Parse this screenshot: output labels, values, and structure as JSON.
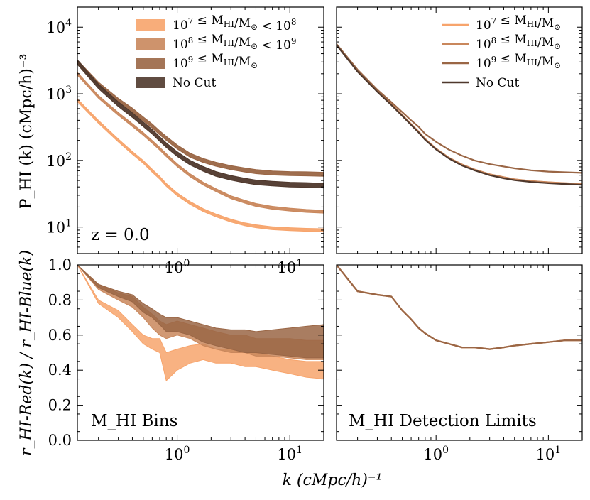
{
  "figure": {
    "xlabel": "k (cMpc/h)⁻¹",
    "ylabel_top": "P_HI (k) (cMpc/h)⁻³",
    "ylabel_bottom": "r_HI-Red(k) / r_HI-Blue(k)",
    "note_redshift": "z = 0.0",
    "note_bins": "M_HI Bins",
    "note_detection": "M_HI Detection Limits"
  },
  "colors": {
    "c1": "#f7a46c",
    "c2": "#c9875c",
    "c3": "#9a6645",
    "c4": "#4f382c"
  },
  "chart_data": [
    {
      "type": "area",
      "panel": "top-left",
      "xscale": "log",
      "yscale": "log",
      "xlim": [
        0.13,
        20
      ],
      "ylim": [
        4,
        20000
      ],
      "x_ticks": [
        "10^0",
        "10^1"
      ],
      "y_ticks": [
        "10^1",
        "10^2",
        "10^3",
        "10^4"
      ],
      "annotation": "z = 0.0",
      "legend": "top-right",
      "x": [
        0.13,
        0.2,
        0.3,
        0.4,
        0.5,
        0.6,
        0.7,
        0.8,
        1.0,
        1.3,
        1.7,
        2.2,
        3,
        4,
        5,
        7,
        10,
        14,
        20
      ],
      "series": [
        {
          "name": "10^7 ≤ M_HI/M_⊙ < 10^8",
          "color_key": "c1",
          "values": [
            800,
            380,
            200,
            130,
            95,
            70,
            55,
            43,
            31,
            23,
            18,
            15,
            12.5,
            11,
            10.3,
            9.6,
            9.3,
            9.1,
            9.0
          ],
          "band": 0.05
        },
        {
          "name": "10^8 ≤ M_HI/M_⊙ < 10^9",
          "color_key": "c2",
          "values": [
            2000,
            900,
            500,
            340,
            250,
            190,
            150,
            120,
            85,
            60,
            45,
            36,
            28,
            24,
            21.5,
            19.5,
            18.3,
            17.5,
            17.0
          ],
          "band": 0.05
        },
        {
          "name": "10^9 ≤ M_HI/M_⊙",
          "color_key": "c3",
          "values": [
            3000,
            1400,
            800,
            570,
            420,
            330,
            260,
            215,
            160,
            120,
            100,
            88,
            78,
            72,
            68,
            65,
            63.5,
            63,
            62
          ],
          "band": 0.07
        },
        {
          "name": "No Cut",
          "color_key": "c4",
          "values": [
            3000,
            1300,
            700,
            480,
            350,
            270,
            210,
            170,
            125,
            93,
            75,
            63,
            55,
            50,
            47,
            45,
            43.5,
            43,
            42
          ],
          "band": 0.08
        }
      ]
    },
    {
      "type": "line",
      "panel": "top-right",
      "xscale": "log",
      "yscale": "log",
      "xlim": [
        0.13,
        20
      ],
      "ylim": [
        4,
        20000
      ],
      "legend": "top-right",
      "x": [
        0.13,
        0.2,
        0.3,
        0.4,
        0.5,
        0.6,
        0.7,
        0.8,
        1.0,
        1.3,
        1.7,
        2.2,
        3,
        4,
        5,
        7,
        10,
        14,
        20
      ],
      "series": [
        {
          "name": "10^7 ≤ M_HI/M_⊙",
          "color_key": "c1",
          "values": [
            5500,
            2200,
            1100,
            700,
            480,
            350,
            270,
            210,
            150,
            110,
            87,
            73,
            62,
            56,
            52,
            49,
            47,
            45.5,
            44.5
          ]
        },
        {
          "name": "10^8 ≤ M_HI/M_⊙",
          "color_key": "c2",
          "values": [
            5500,
            2200,
            1100,
            700,
            480,
            350,
            270,
            210,
            150,
            110,
            87,
            73,
            62,
            56,
            52,
            49,
            47,
            45.5,
            44.5
          ]
        },
        {
          "name": "10^9 ≤ M_HI/M_⊙",
          "color_key": "c3",
          "values": [
            5600,
            2300,
            1150,
            750,
            530,
            400,
            320,
            250,
            190,
            145,
            118,
            100,
            88,
            81,
            76,
            71,
            68,
            66.5,
            65
          ]
        },
        {
          "name": "No Cut",
          "color_key": "c4",
          "values": [
            5400,
            2150,
            1070,
            680,
            465,
            340,
            262,
            204,
            146,
            107,
            84,
            71,
            60,
            54,
            50.5,
            47.5,
            45.5,
            44.2,
            43
          ]
        }
      ]
    },
    {
      "type": "area",
      "panel": "bottom-left",
      "xscale": "log",
      "xlim": [
        0.13,
        20
      ],
      "ylim": [
        0,
        1.0
      ],
      "x_ticks": [
        "10^0",
        "10^1"
      ],
      "y_ticks": [
        "0.0",
        "0.2",
        "0.4",
        "0.6",
        "0.8",
        "1.0"
      ],
      "annotation": "M_HI Bins",
      "x": [
        0.13,
        0.2,
        0.3,
        0.4,
        0.5,
        0.6,
        0.7,
        0.8,
        1.0,
        1.3,
        1.7,
        2.2,
        3,
        4,
        5,
        7,
        10,
        14,
        20
      ],
      "series": [
        {
          "name": "10^7 ≤ M_HI/M_⊙ < 10^8",
          "color_key": "c1",
          "lower": [
            1.0,
            0.78,
            0.7,
            0.62,
            0.55,
            0.52,
            0.5,
            0.34,
            0.4,
            0.44,
            0.46,
            0.44,
            0.44,
            0.42,
            0.42,
            0.4,
            0.38,
            0.36,
            0.35
          ],
          "upper": [
            1.0,
            0.8,
            0.74,
            0.66,
            0.6,
            0.58,
            0.58,
            0.5,
            0.52,
            0.54,
            0.55,
            0.52,
            0.52,
            0.5,
            0.5,
            0.48,
            0.46,
            0.45,
            0.45
          ]
        },
        {
          "name": "10^8 ≤ M_HI/M_⊙ < 10^9",
          "color_key": "c2",
          "lower": [
            1.0,
            0.86,
            0.8,
            0.76,
            0.7,
            0.64,
            0.6,
            0.58,
            0.6,
            0.58,
            0.54,
            0.52,
            0.5,
            0.5,
            0.48,
            0.48,
            0.47,
            0.46,
            0.46
          ],
          "upper": [
            1.0,
            0.89,
            0.84,
            0.82,
            0.76,
            0.72,
            0.68,
            0.66,
            0.68,
            0.66,
            0.64,
            0.62,
            0.6,
            0.6,
            0.58,
            0.58,
            0.58,
            0.57,
            0.57
          ]
        },
        {
          "name": "10^9 ≤ M_HI/M_⊙",
          "color_key": "c3",
          "lower": [
            1.0,
            0.87,
            0.82,
            0.79,
            0.73,
            0.7,
            0.66,
            0.62,
            0.62,
            0.6,
            0.56,
            0.54,
            0.52,
            0.5,
            0.5,
            0.49,
            0.48,
            0.47,
            0.47
          ],
          "upper": [
            1.0,
            0.89,
            0.85,
            0.83,
            0.78,
            0.75,
            0.72,
            0.7,
            0.7,
            0.68,
            0.66,
            0.64,
            0.63,
            0.63,
            0.62,
            0.63,
            0.64,
            0.65,
            0.66
          ]
        }
      ]
    },
    {
      "type": "line",
      "panel": "bottom-right",
      "xscale": "log",
      "xlim": [
        0.13,
        20
      ],
      "ylim": [
        0,
        1.0
      ],
      "x_ticks": [
        "10^0",
        "10^1"
      ],
      "annotation": "M_HI Detection Limits",
      "x": [
        0.13,
        0.2,
        0.3,
        0.4,
        0.5,
        0.6,
        0.7,
        0.8,
        1.0,
        1.3,
        1.7,
        2.2,
        3,
        4,
        5,
        7,
        10,
        14,
        20
      ],
      "series": [
        {
          "name": "10^7 ≤ M_HI/M_⊙",
          "color_key": "c1",
          "values": [
            1.0,
            0.85,
            0.83,
            0.82,
            0.74,
            0.69,
            0.64,
            0.61,
            0.57,
            0.55,
            0.53,
            0.53,
            0.52,
            0.53,
            0.54,
            0.55,
            0.56,
            0.57,
            0.57
          ]
        },
        {
          "name": "10^8 ≤ M_HI/M_⊙",
          "color_key": "c2",
          "values": [
            1.0,
            0.85,
            0.83,
            0.82,
            0.74,
            0.69,
            0.64,
            0.61,
            0.57,
            0.55,
            0.53,
            0.53,
            0.52,
            0.53,
            0.54,
            0.55,
            0.56,
            0.57,
            0.57
          ]
        },
        {
          "name": "10^9 ≤ M_HI/M_⊙",
          "color_key": "c3",
          "values": [
            1.0,
            0.85,
            0.83,
            0.82,
            0.74,
            0.69,
            0.64,
            0.61,
            0.57,
            0.55,
            0.53,
            0.53,
            0.52,
            0.53,
            0.54,
            0.55,
            0.56,
            0.57,
            0.57
          ]
        }
      ]
    }
  ]
}
